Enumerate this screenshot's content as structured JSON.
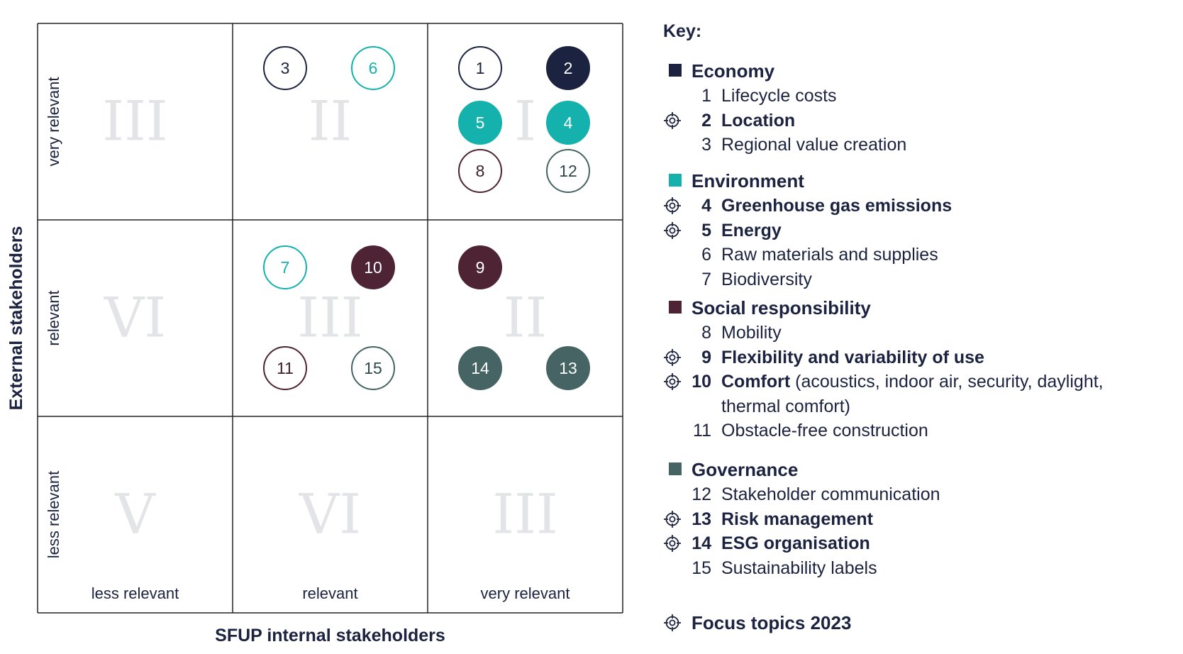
{
  "axes": {
    "y_title": "External stakeholders",
    "x_title": "SFUP internal stakeholders",
    "x_ticks": [
      "less relevant",
      "relevant",
      "very relevant"
    ],
    "y_ticks": [
      "very relevant",
      "relevant",
      "less relevant"
    ]
  },
  "cells": [
    {
      "row": 0,
      "col": 0,
      "roman": "III"
    },
    {
      "row": 0,
      "col": 1,
      "roman": "II"
    },
    {
      "row": 0,
      "col": 2,
      "roman": "I"
    },
    {
      "row": 1,
      "col": 0,
      "roman": "VI"
    },
    {
      "row": 1,
      "col": 1,
      "roman": "III"
    },
    {
      "row": 1,
      "col": 2,
      "roman": "II"
    },
    {
      "row": 2,
      "col": 0,
      "roman": "V"
    },
    {
      "row": 2,
      "col": 1,
      "roman": "VI"
    },
    {
      "row": 2,
      "col": 2,
      "roman": "III"
    }
  ],
  "colors": {
    "economy": "#1c2340",
    "environment": "#14b1ad",
    "social": "#4e2434",
    "governance": "#466464",
    "grid": "#222222",
    "roman": "#e3e4e8"
  },
  "topics": [
    {
      "num": "1",
      "category": "economy",
      "filled": false,
      "cell_row": 0,
      "cell_col": 2,
      "slot": "top-left"
    },
    {
      "num": "2",
      "category": "economy",
      "filled": true,
      "cell_row": 0,
      "cell_col": 2,
      "slot": "top-right"
    },
    {
      "num": "3",
      "category": "economy",
      "filled": false,
      "cell_row": 0,
      "cell_col": 1,
      "slot": "top-left"
    },
    {
      "num": "4",
      "category": "environment",
      "filled": true,
      "cell_row": 0,
      "cell_col": 2,
      "slot": "middle-right"
    },
    {
      "num": "5",
      "category": "environment",
      "filled": true,
      "cell_row": 0,
      "cell_col": 2,
      "slot": "middle-left"
    },
    {
      "num": "6",
      "category": "environment",
      "filled": false,
      "cell_row": 0,
      "cell_col": 1,
      "slot": "top-right"
    },
    {
      "num": "7",
      "category": "environment",
      "filled": false,
      "cell_row": 1,
      "cell_col": 1,
      "slot": "top-left"
    },
    {
      "num": "8",
      "category": "social",
      "filled": false,
      "cell_row": 0,
      "cell_col": 2,
      "slot": "bottom-left"
    },
    {
      "num": "9",
      "category": "social",
      "filled": true,
      "cell_row": 1,
      "cell_col": 2,
      "slot": "top-left"
    },
    {
      "num": "10",
      "category": "social",
      "filled": true,
      "cell_row": 1,
      "cell_col": 1,
      "slot": "top-right"
    },
    {
      "num": "11",
      "category": "social",
      "filled": false,
      "cell_row": 1,
      "cell_col": 1,
      "slot": "bottom-left"
    },
    {
      "num": "12",
      "category": "governance",
      "filled": false,
      "cell_row": 0,
      "cell_col": 2,
      "slot": "bottom-right"
    },
    {
      "num": "13",
      "category": "governance",
      "filled": true,
      "cell_row": 1,
      "cell_col": 2,
      "slot": "bottom-right"
    },
    {
      "num": "14",
      "category": "governance",
      "filled": true,
      "cell_row": 1,
      "cell_col": 2,
      "slot": "bottom-left"
    },
    {
      "num": "15",
      "category": "governance",
      "filled": false,
      "cell_row": 1,
      "cell_col": 1,
      "slot": "bottom-right"
    }
  ],
  "legend": {
    "title": "Key:",
    "categories": [
      {
        "key": "economy",
        "label": "Economy",
        "items": [
          {
            "num": "1",
            "label": "Lifecycle costs",
            "focus": false
          },
          {
            "num": "2",
            "label": "Location",
            "focus": true
          },
          {
            "num": "3",
            "label": "Regional value creation",
            "focus": false
          }
        ]
      },
      {
        "key": "environment",
        "label": "Environment",
        "items": [
          {
            "num": "4",
            "label": "Greenhouse gas emissions",
            "focus": true
          },
          {
            "num": "5",
            "label": "Energy",
            "focus": true
          },
          {
            "num": "6",
            "label": "Raw materials and supplies",
            "focus": false
          },
          {
            "num": "7",
            "label": "Biodiversity",
            "focus": false
          }
        ]
      },
      {
        "key": "social",
        "label": "Social responsibility",
        "items": [
          {
            "num": "8",
            "label": "Mobility",
            "focus": false
          },
          {
            "num": "9",
            "label": "Flexibility and variability of use",
            "focus": true
          },
          {
            "num": "10",
            "label": "Comfort",
            "note": " (acoustics, indoor air, security, daylight,",
            "note2": "thermal comfort)",
            "focus": true
          },
          {
            "num": "11",
            "label": "Obstacle-free construction",
            "focus": false
          }
        ]
      },
      {
        "key": "governance",
        "label": "Governance",
        "items": [
          {
            "num": "12",
            "label": "Stakeholder communication",
            "focus": false
          },
          {
            "num": "13",
            "label": "Risk management",
            "focus": true
          },
          {
            "num": "14",
            "label": "ESG organisation",
            "focus": true
          },
          {
            "num": "15",
            "label": "Sustainability labels",
            "focus": false
          }
        ]
      }
    ],
    "focus_label": "Focus topics 2023"
  }
}
